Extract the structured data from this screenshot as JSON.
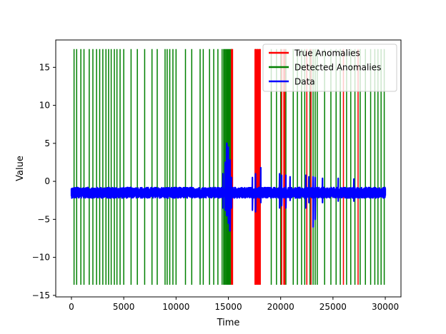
{
  "chart_data": {
    "type": "line",
    "title": "",
    "xlabel": "Time",
    "ylabel": "Value",
    "xlim": [
      -1500,
      31500
    ],
    "ylim": [
      -15.2,
      18.6
    ],
    "xticks": [
      0,
      5000,
      10000,
      15000,
      20000,
      25000,
      30000
    ],
    "yticks": [
      -15,
      -10,
      -5,
      0,
      5,
      10,
      15
    ],
    "grid": false,
    "legend_position": "top-right",
    "colors": {
      "true": "#ff0000",
      "detected": "#008000",
      "data": "#0000ff"
    },
    "series": [
      {
        "name": "True Anomalies",
        "kind": "vertical-lines",
        "y_range": [
          -13.6,
          17.4
        ],
        "x": [
          15300,
          15400,
          17550,
          17650,
          17750,
          17850,
          17950,
          18050,
          20100,
          20300,
          20400,
          22500,
          22900,
          26000,
          27400
        ]
      },
      {
        "name": "Detected Anomalies",
        "kind": "vertical-lines",
        "y_range": [
          -13.6,
          17.4
        ],
        "x": [
          250,
          500,
          900,
          1200,
          1700,
          2050,
          2400,
          2700,
          3000,
          3300,
          3550,
          3800,
          4100,
          4350,
          4650,
          5000,
          5700,
          6300,
          7000,
          7700,
          8200,
          8950,
          9150,
          9400,
          9700,
          10000,
          10900,
          11500,
          12300,
          12600,
          13200,
          13600,
          14000,
          14400,
          14550,
          14650,
          14750,
          14850,
          14950,
          15050,
          15150,
          15250,
          15350,
          17600,
          17800,
          18000,
          19100,
          19600,
          20000,
          20500,
          21200,
          21600,
          22000,
          22300,
          22800,
          23100,
          23300,
          23500,
          24200,
          24800,
          25300,
          25700,
          26300,
          26700,
          27100,
          27600,
          28100,
          28600,
          29000,
          29300,
          29600,
          29900
        ]
      },
      {
        "name": "Data",
        "kind": "line",
        "x_range": [
          0,
          30000
        ],
        "baseline": -1.5,
        "noise_amplitude": 0.7,
        "spikes": [
          {
            "x": 14500,
            "min": -3.5,
            "max": 1.0
          },
          {
            "x": 14700,
            "min": -3.8,
            "max": 2.5
          },
          {
            "x": 14850,
            "min": -4.5,
            "max": 5.0
          },
          {
            "x": 15000,
            "min": -5.5,
            "max": 4.5
          },
          {
            "x": 15150,
            "min": -6.5,
            "max": 2.8
          },
          {
            "x": 15300,
            "min": -3.5,
            "max": 0.5
          },
          {
            "x": 17300,
            "min": -3.8,
            "max": 0.5
          },
          {
            "x": 17600,
            "min": -4.0,
            "max": 1.0
          },
          {
            "x": 18100,
            "min": -2.8,
            "max": 1.8
          },
          {
            "x": 19900,
            "min": -3.5,
            "max": 1.0
          },
          {
            "x": 20100,
            "min": -3.2,
            "max": 0.8
          },
          {
            "x": 20500,
            "min": -3.5,
            "max": 0.8
          },
          {
            "x": 20900,
            "min": -2.5,
            "max": 0.6
          },
          {
            "x": 22400,
            "min": -3.5,
            "max": 0.8
          },
          {
            "x": 22700,
            "min": -2.8,
            "max": 0.6
          },
          {
            "x": 23100,
            "min": -6.0,
            "max": 0.6
          },
          {
            "x": 23300,
            "min": -5.0,
            "max": 0.5
          },
          {
            "x": 24000,
            "min": -2.8,
            "max": 0.4
          },
          {
            "x": 25500,
            "min": -2.6,
            "max": 0.4
          },
          {
            "x": 27000,
            "min": -2.6,
            "max": 0.3
          }
        ]
      }
    ]
  }
}
